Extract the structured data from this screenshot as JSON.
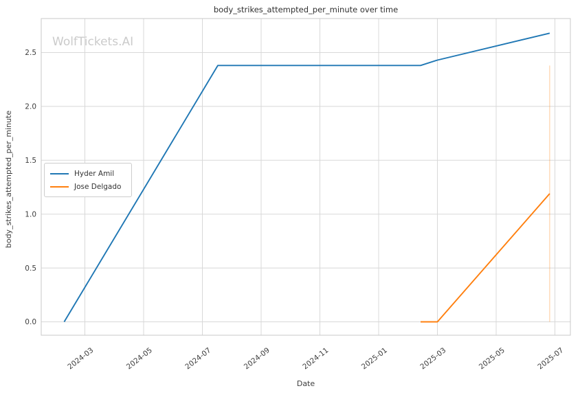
{
  "title": "body_strikes_attempted_per_minute over time",
  "watermark": "WolfTickets.AI",
  "xlabel": "Date",
  "ylabel": "body_strikes_attempted_per_minute",
  "colors": {
    "hyder_amil": "#1f77b4",
    "jose_delgado": "#ff7f0e",
    "grid": "#d8d8d8",
    "spine": "#c9c9c9",
    "text": "#3d3d3d",
    "watermark": "#cbcbcb"
  },
  "legend": {
    "items": [
      {
        "label": "Hyder Amil",
        "color": "#1f77b4"
      },
      {
        "label": "Jose Delgado",
        "color": "#ff7f0e"
      }
    ]
  },
  "chart_data": {
    "type": "line",
    "title": "body_strikes_attempted_per_minute over time",
    "xlabel": "Date",
    "ylabel": "body_strikes_attempted_per_minute",
    "x_ticks": [
      "2024-03",
      "2024-05",
      "2024-07",
      "2024-09",
      "2024-11",
      "2025-01",
      "2025-03",
      "2025-05",
      "2025-07"
    ],
    "y_ticks": [
      "0.0",
      "0.5",
      "1.0",
      "1.5",
      "2.0",
      "2.5"
    ],
    "xlim": [
      "2024-01-16",
      "2025-07-17"
    ],
    "ylim": [
      -0.12,
      2.82
    ],
    "grid": true,
    "legend_position": "center-left",
    "series": [
      {
        "name": "Hyder Amil",
        "color": "#1f77b4",
        "points": [
          [
            "2024-02-10",
            0.0
          ],
          [
            "2024-07-17",
            2.38
          ],
          [
            "2025-02-14",
            2.38
          ],
          [
            "2025-03-01",
            2.43
          ],
          [
            "2025-06-26",
            2.68
          ]
        ]
      },
      {
        "name": "Jose Delgado",
        "color": "#ff7f0e",
        "points": [
          [
            "2025-02-14",
            0.0
          ],
          [
            "2025-03-01",
            0.0
          ],
          [
            "2025-06-26",
            1.19
          ]
        ]
      }
    ],
    "marker_vline": {
      "date": "2025-06-26",
      "from": 0.0,
      "to": 2.38,
      "color": "#ff7f0e",
      "opacity": 0.33
    }
  }
}
